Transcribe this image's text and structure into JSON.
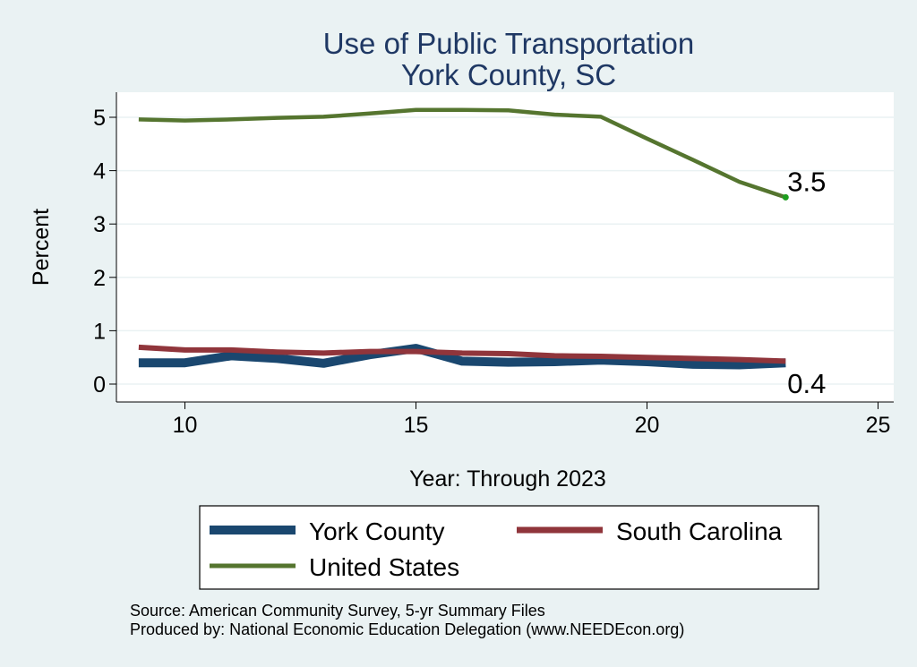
{
  "chart_data": {
    "type": "line",
    "title": "Use of Public Transportation",
    "subtitle": "York County, SC",
    "xlabel": "Year: Through 2023",
    "ylabel": "Percent",
    "xlim": [
      9,
      25
    ],
    "ylim": [
      0,
      5.2
    ],
    "xticks": [
      10,
      15,
      20,
      25
    ],
    "yticks": [
      0,
      1,
      2,
      3,
      4,
      5
    ],
    "grid": true,
    "legend_position": "bottom",
    "series": [
      {
        "name": "York County",
        "color": "#1a476f",
        "x": [
          9,
          10,
          11,
          12,
          13,
          14,
          15,
          16,
          17,
          18,
          19,
          20,
          21,
          22,
          23
        ],
        "y": [
          0.4,
          0.4,
          0.53,
          0.48,
          0.39,
          0.55,
          0.67,
          0.43,
          0.41,
          0.42,
          0.45,
          0.42,
          0.37,
          0.36,
          0.4
        ]
      },
      {
        "name": "South Carolina",
        "color": "#90353b",
        "x": [
          9,
          10,
          11,
          12,
          13,
          14,
          15,
          16,
          17,
          18,
          19,
          20,
          21,
          22,
          23
        ],
        "y": [
          0.69,
          0.64,
          0.64,
          0.6,
          0.58,
          0.61,
          0.61,
          0.58,
          0.57,
          0.53,
          0.52,
          0.5,
          0.48,
          0.46,
          0.43
        ]
      },
      {
        "name": "United States",
        "color": "#55752f",
        "x": [
          9,
          10,
          11,
          12,
          13,
          14,
          15,
          16,
          17,
          18,
          19,
          20,
          21,
          22,
          23
        ],
        "y": [
          4.96,
          4.94,
          4.96,
          4.99,
          5.01,
          5.07,
          5.14,
          5.14,
          5.13,
          5.05,
          5.01,
          4.6,
          4.2,
          3.79,
          3.5
        ]
      }
    ],
    "end_labels": [
      {
        "series": "United States",
        "text": "3.5"
      },
      {
        "series": "York County",
        "text": "0.4"
      }
    ],
    "legend": [
      {
        "text": "York County",
        "color": "#1a476f"
      },
      {
        "text": "South Carolina",
        "color": "#90353b"
      },
      {
        "text": "United States",
        "color": "#55752f"
      }
    ],
    "notes": [
      "Source: American Community Survey, 5-yr Summary Files",
      "Produced by: National Economic Education Delegation (www.NEEDEcon.org)"
    ]
  }
}
